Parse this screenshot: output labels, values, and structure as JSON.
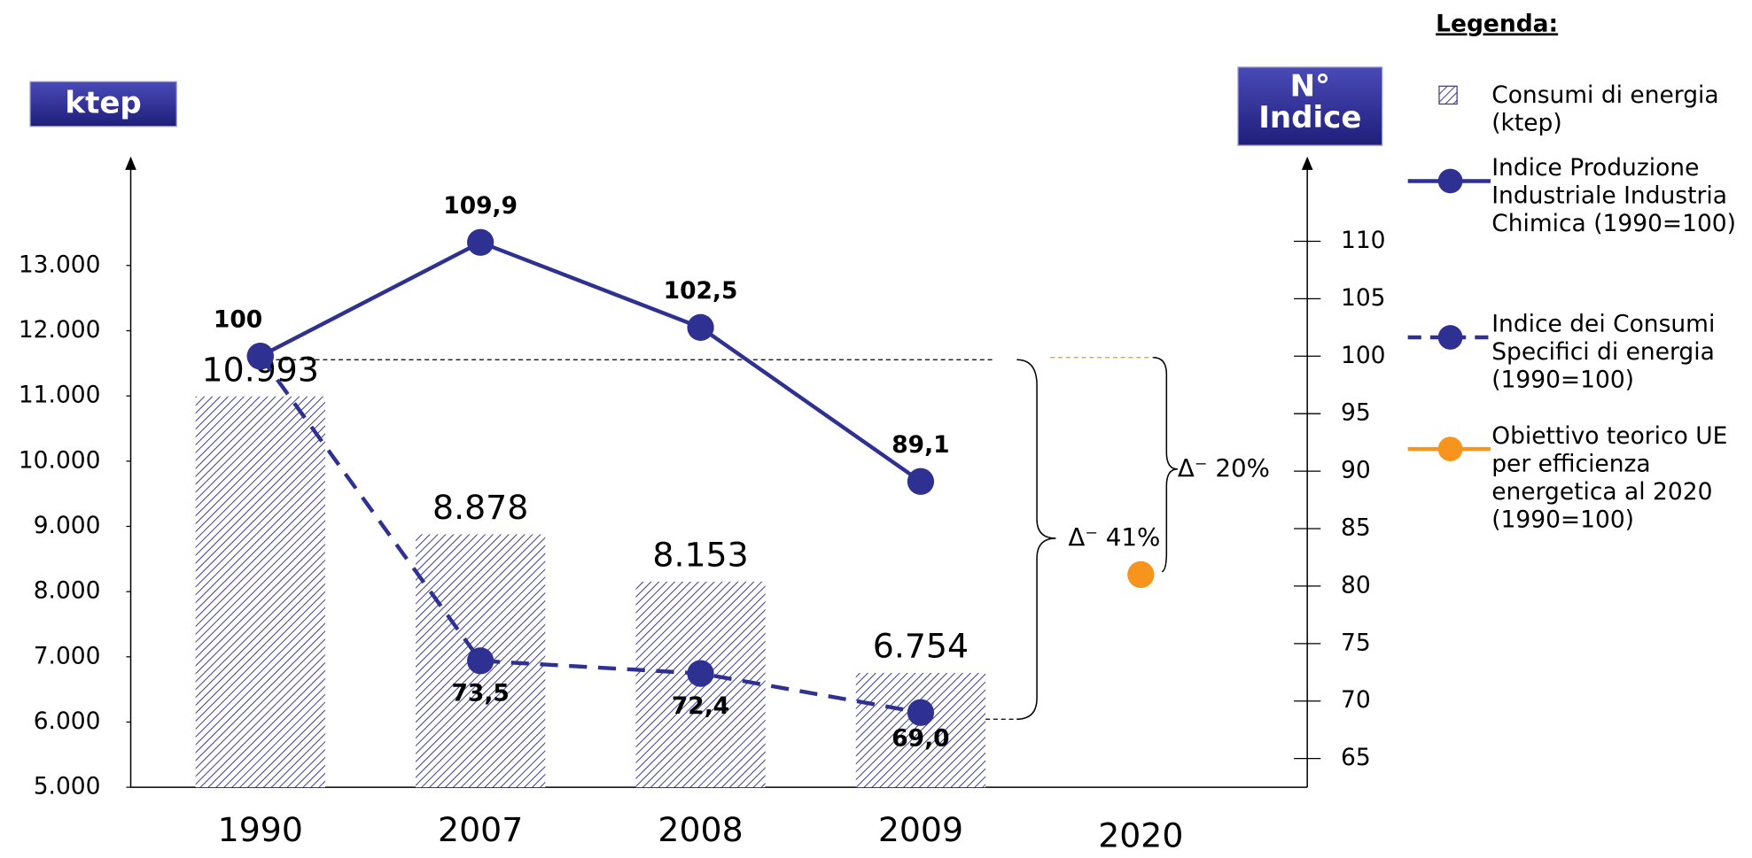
{
  "chart_data": {
    "type": "bar",
    "categories": [
      "1990",
      "2007",
      "2008",
      "2009",
      "2020"
    ],
    "y_label": "ktep",
    "y2_label": "N° Indice",
    "legend_title": "Legenda:",
    "ylim": [
      5000,
      14500
    ],
    "yticks": [
      {
        "value": 5000,
        "label": "5.000"
      },
      {
        "value": 6000,
        "label": "6.000"
      },
      {
        "value": 7000,
        "label": "7.000"
      },
      {
        "value": 8000,
        "label": "8.000"
      },
      {
        "value": 9000,
        "label": "9.000"
      },
      {
        "value": 10000,
        "label": "10.000"
      },
      {
        "value": 11000,
        "label": "11.000"
      },
      {
        "value": 12000,
        "label": "12.000"
      },
      {
        "value": 13000,
        "label": "13.000"
      }
    ],
    "y2lim": [
      62.5,
      116.4
    ],
    "y2ticks": [
      65,
      70,
      75,
      80,
      85,
      90,
      95,
      100,
      105,
      110
    ],
    "series": [
      {
        "name": "Consumi di energia (ktep)",
        "type": "bar",
        "color": "#3d3d99",
        "values": [
          10993,
          8878,
          8153,
          6754,
          null
        ],
        "value_labels": [
          "10.993",
          "8.878",
          "8.153",
          "6.754",
          null
        ]
      },
      {
        "name": "Indice Produzione Industriale Industria Chimica (1990=100)",
        "type": "line",
        "axis": "y2",
        "color": "#2e3192",
        "dash": false,
        "values": [
          100,
          109.9,
          102.5,
          89.1,
          null
        ],
        "value_labels": [
          "100",
          "109,9",
          "102,5",
          "89,1",
          null
        ]
      },
      {
        "name": "Indice dei Consumi Specifici  di energia (1990=100)",
        "type": "line",
        "axis": "y2",
        "color": "#2e3192",
        "dash": true,
        "values": [
          100,
          73.5,
          72.4,
          69.0,
          null
        ],
        "value_labels": [
          null,
          "73,5",
          "72,4",
          "69,0",
          null
        ]
      },
      {
        "name": "Obiettivo teorico UE per efficienza energetica al 2020 (1990=100)",
        "type": "line",
        "axis": "y2",
        "color": "#f7941d",
        "dash": true,
        "values": [
          100,
          null,
          null,
          null,
          81
        ],
        "value_labels": [
          null,
          null,
          null,
          null,
          null
        ]
      }
    ],
    "annotations": [
      "Δ⁻ 41%",
      "Δ⁻ 20%"
    ]
  }
}
